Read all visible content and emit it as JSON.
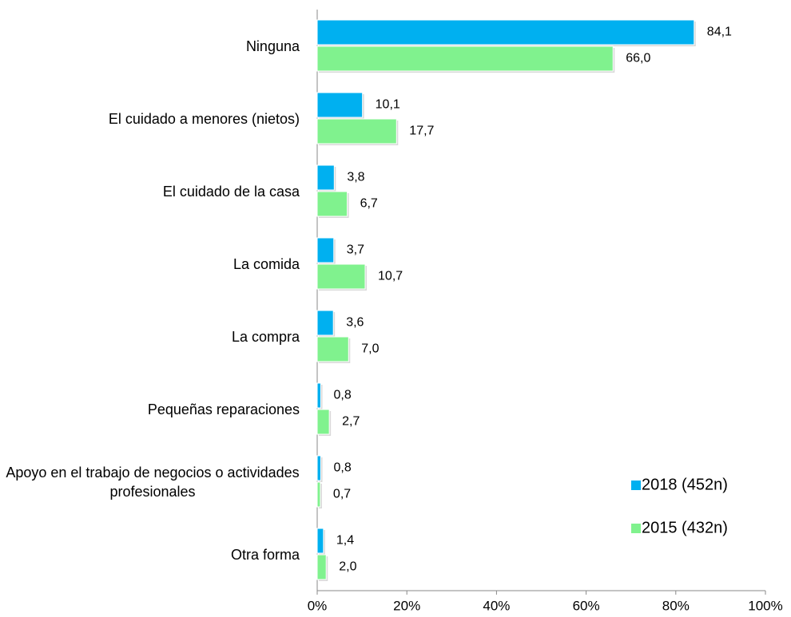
{
  "chart_data": {
    "type": "bar",
    "orientation": "horizontal",
    "categories": [
      "Ninguna",
      "El cuidado a menores (nietos)",
      "El cuidado de la casa",
      "La comida",
      "La compra",
      "Pequeñas reparaciones",
      "Apoyo en el trabajo de negocios o actividades profesionales",
      "Otra forma"
    ],
    "series": [
      {
        "name": "2018 (452n)",
        "color": "#00b0f0",
        "values": [
          84.1,
          10.1,
          3.8,
          3.7,
          3.6,
          0.8,
          0.8,
          1.4
        ],
        "value_labels": [
          "84,1",
          "10,1",
          "3,8",
          "3,7",
          "3,6",
          "0,8",
          "0,8",
          "1,4"
        ]
      },
      {
        "name": "2015 (432n)",
        "color": "#80f28e",
        "values": [
          66.0,
          17.7,
          6.7,
          10.7,
          7.0,
          2.7,
          0.7,
          2.0
        ],
        "value_labels": [
          "66,0",
          "17,7",
          "6,7",
          "10,7",
          "7,0",
          "2,7",
          "0,7",
          "2,0"
        ]
      }
    ],
    "xlim": [
      0,
      100
    ],
    "xticks": [
      {
        "value": 0,
        "label": "0%"
      },
      {
        "value": 20,
        "label": "20%"
      },
      {
        "value": 40,
        "label": "40%"
      },
      {
        "value": 60,
        "label": "60%"
      },
      {
        "value": 80,
        "label": "80%"
      },
      {
        "value": 100,
        "label": "100%"
      }
    ],
    "legend": "lower right",
    "grid": false
  }
}
